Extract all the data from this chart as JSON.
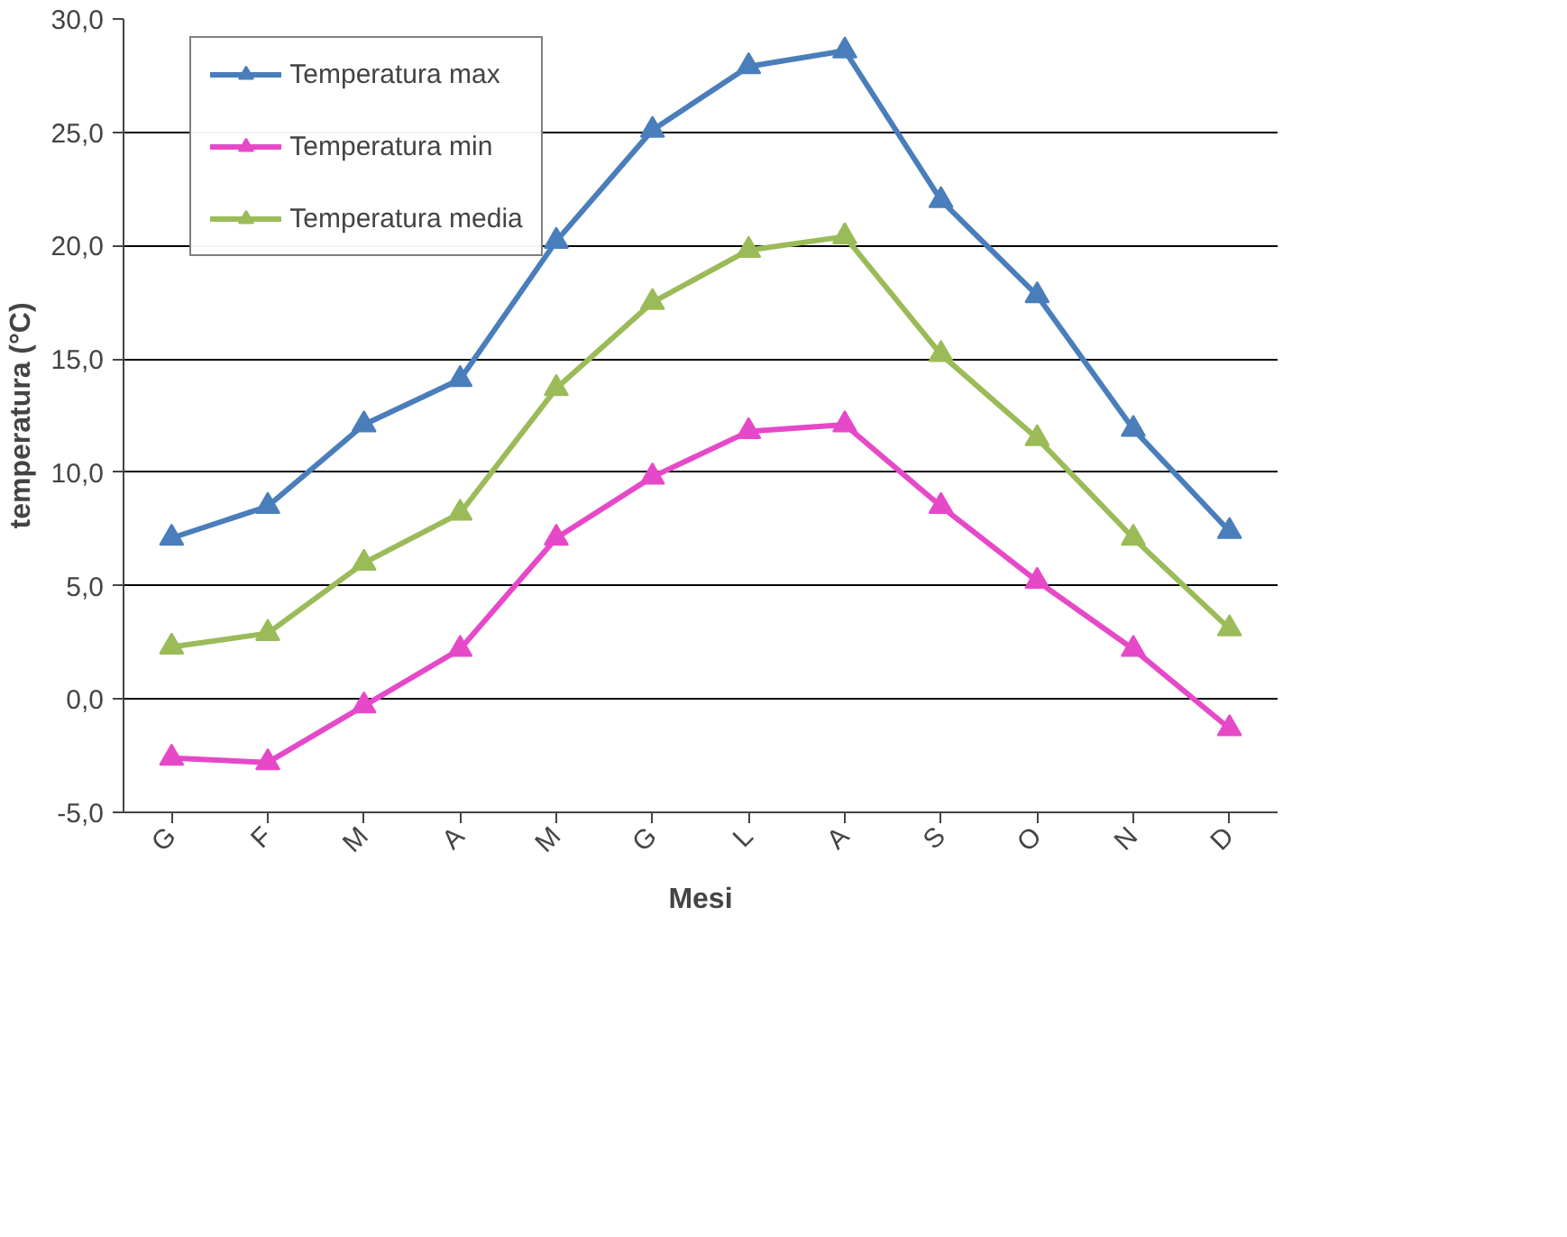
{
  "chart_data": {
    "type": "line",
    "xlabel": "Mesi",
    "ylabel": "temperatura (°C)",
    "categories": [
      "G",
      "F",
      "M",
      "A",
      "M",
      "G",
      "L",
      "A",
      "S",
      "O",
      "N",
      "D"
    ],
    "series": [
      {
        "name": "Temperatura max",
        "color": "#4a7ebb",
        "values": [
          7.1,
          8.5,
          12.1,
          14.1,
          20.2,
          25.1,
          27.9,
          28.6,
          22.0,
          17.8,
          11.9,
          7.4
        ]
      },
      {
        "name": "Temperatura min",
        "color": "#e649c8",
        "values": [
          -2.6,
          -2.8,
          -0.3,
          2.2,
          7.1,
          9.8,
          11.8,
          12.1,
          8.5,
          5.2,
          2.2,
          -1.3
        ]
      },
      {
        "name": "Temperatura media",
        "color": "#9bbb59",
        "values": [
          2.3,
          2.9,
          6.0,
          8.2,
          13.7,
          17.5,
          19.8,
          20.4,
          15.2,
          11.5,
          7.1,
          3.1
        ]
      }
    ],
    "ylim": [
      -5,
      30
    ],
    "yticks": [
      {
        "value": -5,
        "label": "-5,0"
      },
      {
        "value": 0,
        "label": "0,0"
      },
      {
        "value": 5,
        "label": "5,0"
      },
      {
        "value": 10,
        "label": "10,0"
      },
      {
        "value": 15,
        "label": "15,0"
      },
      {
        "value": 20,
        "label": "20,0"
      },
      {
        "value": 25,
        "label": "25,0"
      },
      {
        "value": 30,
        "label": "30,0"
      }
    ],
    "grid": "y",
    "legend": "top left",
    "marker": "triangle",
    "line_style": "solid"
  }
}
